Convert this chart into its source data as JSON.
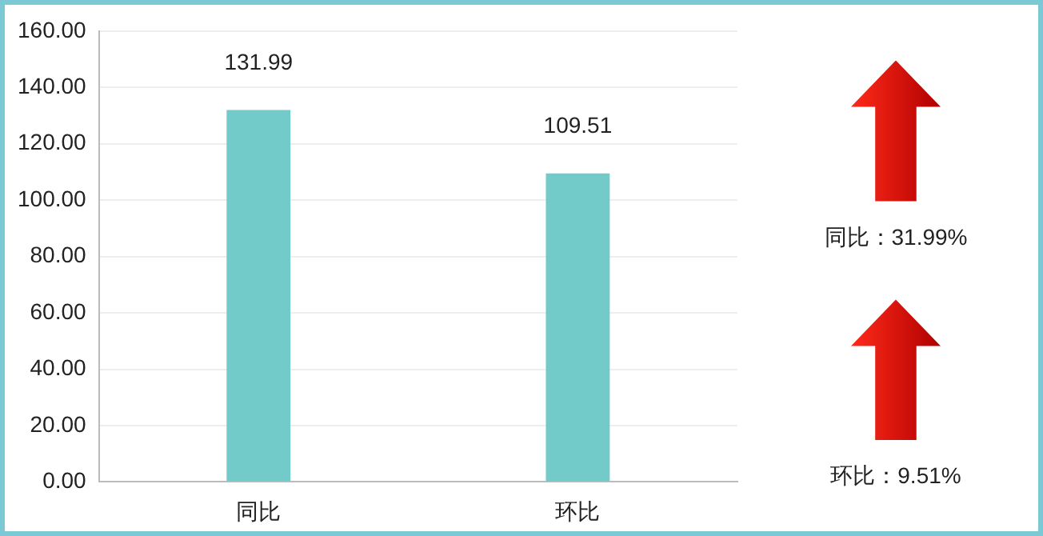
{
  "chart_data": {
    "type": "bar",
    "categories": [
      "同比",
      "环比"
    ],
    "values": [
      131.99,
      109.51
    ],
    "color": "#72cbc9",
    "ylim": [
      0,
      160
    ],
    "yticks": [
      {
        "value": 0,
        "label": "0.00"
      },
      {
        "value": 20,
        "label": "20.00"
      },
      {
        "value": 40,
        "label": "40.00"
      },
      {
        "value": 60,
        "label": "60.00"
      },
      {
        "value": 80,
        "label": "80.00"
      },
      {
        "value": 100,
        "label": "100.00"
      },
      {
        "value": 120,
        "label": "120.00"
      },
      {
        "value": 140,
        "label": "140.00"
      },
      {
        "value": 160,
        "label": "160.00"
      }
    ],
    "grid": "y",
    "data_labels": true,
    "annotations": [
      "同比：31.99%",
      "环比：9.51%"
    ]
  }
}
